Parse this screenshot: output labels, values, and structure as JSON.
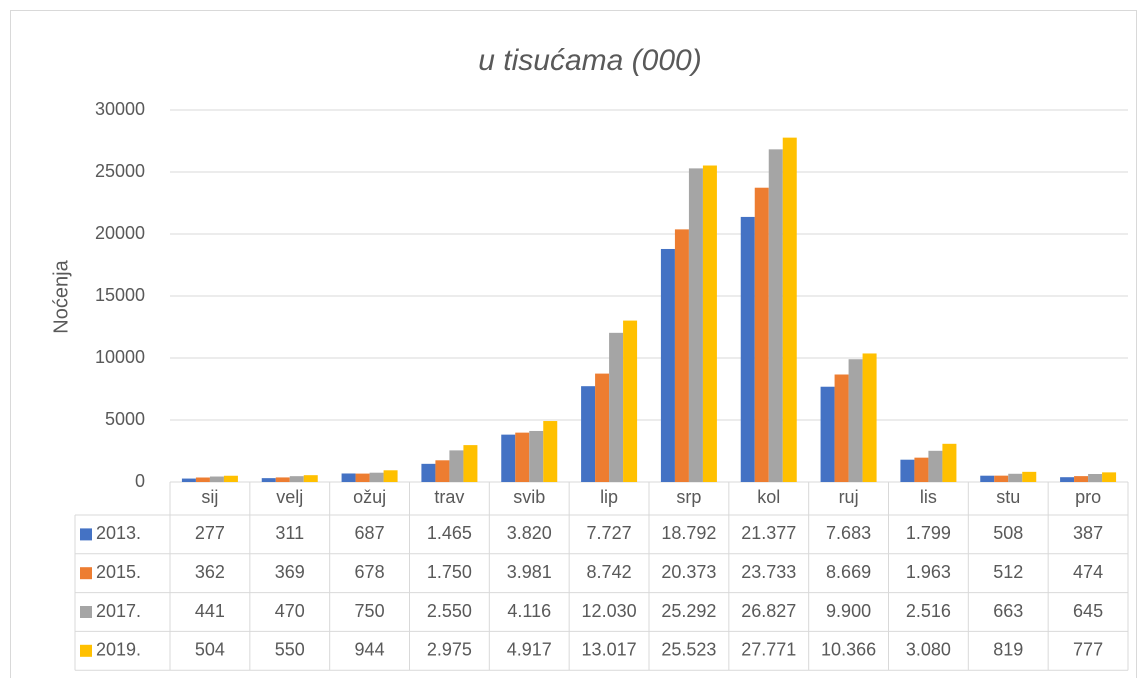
{
  "chart_data": {
    "type": "bar",
    "title": "u tisućama (000)",
    "y_label": "Noćenja",
    "categories": [
      "sij",
      "velj",
      "ožuj",
      "trav",
      "svib",
      "lip",
      "srp",
      "kol",
      "ruj",
      "lis",
      "stu",
      "pro"
    ],
    "series": [
      {
        "name": "2013.",
        "color": "#4472c4",
        "values": [
          277,
          311,
          687,
          1465,
          3820,
          7727,
          18792,
          21377,
          7683,
          1799,
          508,
          387
        ],
        "value_labels": [
          "277",
          "311",
          "687",
          "1.465",
          "3.820",
          "7.727",
          "18.792",
          "21.377",
          "7.683",
          "1.799",
          "508",
          "387"
        ]
      },
      {
        "name": "2015.",
        "color": "#ed7d31",
        "values": [
          362,
          369,
          678,
          1750,
          3981,
          8742,
          20373,
          23733,
          8669,
          1963,
          512,
          474
        ],
        "value_labels": [
          "362",
          "369",
          "678",
          "1.750",
          "3.981",
          "8.742",
          "20.373",
          "23.733",
          "8.669",
          "1.963",
          "512",
          "474"
        ]
      },
      {
        "name": "2017.",
        "color": "#a5a5a5",
        "values": [
          441,
          470,
          750,
          2550,
          4116,
          12030,
          25292,
          26827,
          9900,
          2516,
          663,
          645
        ],
        "value_labels": [
          "441",
          "470",
          "750",
          "2.550",
          "4.116",
          "12.030",
          "25.292",
          "26.827",
          "9.900",
          "2.516",
          "663",
          "645"
        ]
      },
      {
        "name": "2019.",
        "color": "#ffc000",
        "values": [
          504,
          550,
          944,
          2975,
          4917,
          13017,
          25523,
          27771,
          10366,
          3080,
          819,
          777
        ],
        "value_labels": [
          "504",
          "550",
          "944",
          "2.975",
          "4.917",
          "13.017",
          "25.523",
          "27.771",
          "10.366",
          "3.080",
          "819",
          "777"
        ]
      }
    ],
    "ylim": [
      0,
      30000
    ],
    "yticks": [
      0,
      5000,
      10000,
      15000,
      20000,
      25000,
      30000
    ],
    "grid": true
  }
}
